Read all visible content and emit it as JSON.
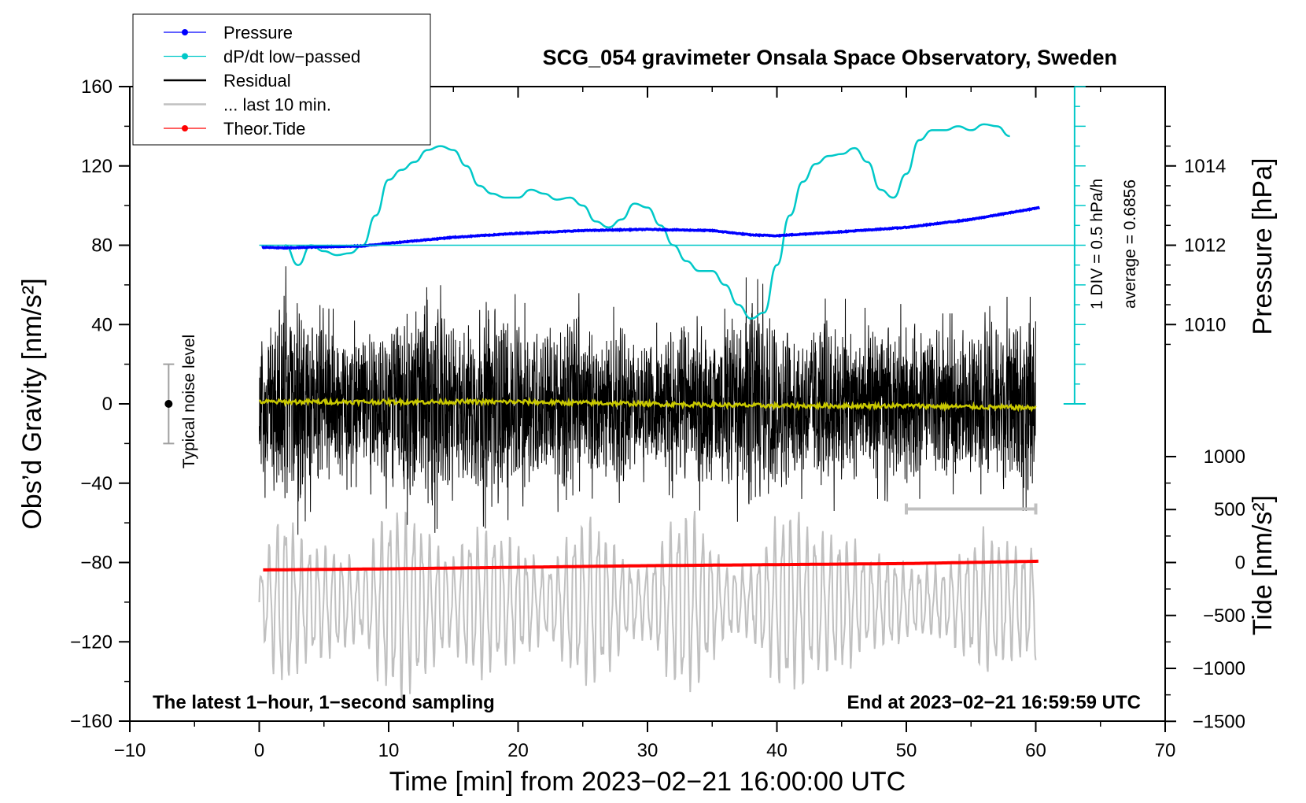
{
  "chart_data": {
    "type": "line",
    "title": "SCG_054 gravimeter Onsala Space Observatory, Sweden",
    "xlabel": "Time [min] from 2023−02−21 16:00:00 UTC",
    "ylabel_left": "Obs’d Gravity [nm/s²]",
    "ylabel_right_pressure": "Pressure [hPa]",
    "ylabel_right_tide": "Tide [nm/s²]",
    "xlim": [
      -10,
      70
    ],
    "ylim": [
      -160,
      160
    ],
    "x_ticks": [
      -10,
      0,
      10,
      20,
      30,
      40,
      50,
      60,
      70
    ],
    "x_tick_labels": [
      "−10",
      "0",
      "10",
      "20",
      "30",
      "40",
      "50",
      "60",
      "70"
    ],
    "y_ticks": [
      160,
      120,
      80,
      40,
      0,
      -40,
      -80,
      -120,
      -160
    ],
    "y_tick_labels": [
      "160",
      "120",
      "80",
      "40",
      "0",
      "−40",
      "−80",
      "−120",
      "−160"
    ],
    "pressure_ticks": [
      1014,
      1012,
      1010
    ],
    "pressure_tick_labels": [
      "1014",
      "1012",
      "1010"
    ],
    "pressure_scale": {
      "value_at_gravity_80": 1012,
      "hpa_per_40_gravity": 2
    },
    "tide_ticks": [
      1000,
      500,
      0,
      -500,
      -1000,
      -1500
    ],
    "tide_tick_labels": [
      "1000",
      "500",
      "0",
      "−500",
      "−1000",
      "−1500"
    ],
    "tide_scale": {
      "value_at_gravity_minus80": 0,
      "gravity_per_500": 26.7
    },
    "legend": [
      {
        "label": "Pressure",
        "color": "#0000ff",
        "marker": true
      },
      {
        "label": "dP/dt low−passed",
        "color": "#00c8c8",
        "marker": true
      },
      {
        "label": "Residual",
        "color": "#000000",
        "marker": false
      },
      {
        "label": "... last 10 min.",
        "color": "#c0c0c0",
        "marker": false
      },
      {
        "label": "Theor.Tide",
        "color": "#ff0000",
        "marker": true
      }
    ],
    "footer_left": "The latest 1−hour, 1−second sampling",
    "footer_right": "End at 2023−02−21 16:59:59 UTC",
    "noise_label": "Typical noise level",
    "noise_bar": {
      "x": -7,
      "center": 0,
      "half_range": 20
    },
    "dpdt_scale_label": "1 DIV = 0.5 hPa/h",
    "dpdt_average_label": "average = 0.6856",
    "dpdt_scale_axis": {
      "x": 63,
      "y_range": [
        0,
        160
      ],
      "baseline_y": 80
    },
    "last10_range_bar": {
      "x_range": [
        50,
        60
      ],
      "y": -53
    },
    "series": [
      {
        "name": "Pressure",
        "color": "#0000ff",
        "axis": "pressure",
        "x": [
          0.2,
          2,
          5,
          8,
          10,
          15,
          20,
          25,
          30,
          35,
          38,
          40,
          45,
          50,
          55,
          60.3
        ],
        "y": [
          1011.95,
          1011.93,
          1011.96,
          1011.98,
          1012.05,
          1012.2,
          1012.3,
          1012.37,
          1012.4,
          1012.37,
          1012.26,
          1012.24,
          1012.34,
          1012.45,
          1012.65,
          1012.95
        ]
      },
      {
        "name": "dP/dt low−passed",
        "color": "#00c8c8",
        "axis": "gravity_proxy",
        "x": [
          2,
          3,
          4,
          5,
          6,
          7,
          8,
          9,
          10,
          11,
          12,
          13,
          14,
          15,
          16,
          17,
          18,
          19,
          20,
          21,
          22,
          23,
          24,
          25,
          26,
          27,
          28,
          29,
          30,
          31,
          32,
          33,
          34,
          35,
          36,
          37,
          38,
          39,
          40,
          41,
          42,
          43,
          44,
          45,
          46,
          47,
          48,
          49,
          50,
          51,
          52,
          53,
          54,
          55,
          56,
          57,
          58
        ],
        "y": [
          80,
          70,
          80,
          77,
          75,
          76,
          80,
          95,
          113,
          118,
          122,
          128,
          130,
          128,
          120,
          110,
          106,
          104,
          104,
          108,
          106,
          103,
          104,
          100,
          92,
          89,
          93,
          101,
          99,
          90,
          80,
          72,
          67,
          67,
          60,
          50,
          43,
          46,
          70,
          95,
          112,
          121,
          125,
          126,
          129,
          122,
          108,
          104,
          116,
          133,
          138,
          138,
          140,
          138,
          141,
          140,
          135
        ]
      },
      {
        "name": "Residual",
        "color": "#000000",
        "axis": "gravity",
        "x_range": [
          0,
          60
        ],
        "amplitude_envelope": [
          35,
          45,
          58,
          55,
          45,
          40,
          40,
          35,
          35,
          40,
          45,
          50,
          52,
          60,
          50,
          40,
          40,
          50,
          55,
          50,
          45,
          40,
          40,
          45,
          50,
          45,
          38,
          40,
          42,
          35,
          32,
          35,
          40,
          45,
          45,
          40,
          40,
          50,
          55,
          50,
          45,
          40,
          40,
          42,
          45,
          45,
          42,
          40,
          40,
          42,
          42,
          40,
          38,
          38,
          38,
          38,
          38,
          45,
          45,
          45,
          45
        ],
        "mean_trace": {
          "color": "#c8c800",
          "x": [
            0,
            10,
            20,
            30,
            40,
            50,
            60
          ],
          "y": [
            1,
            1,
            1,
            0,
            -1,
            -1,
            -2
          ]
        }
      },
      {
        "name": "... last 10 min.",
        "color": "#c0c0c0",
        "axis": "gravity",
        "x_range": [
          0,
          60
        ],
        "center": -100,
        "amplitude_envelope": [
          12,
          30,
          40,
          28,
          25,
          25,
          22,
          20,
          15,
          30,
          40,
          40,
          38,
          30,
          25,
          18,
          30,
          32,
          30,
          28,
          25,
          20,
          15,
          20,
          30,
          35,
          35,
          30,
          20,
          15,
          15,
          25,
          35,
          40,
          35,
          25,
          15,
          15,
          15,
          25,
          35,
          40,
          35,
          30,
          30,
          30,
          25,
          20,
          20,
          20,
          15,
          15,
          15,
          15,
          20,
          25,
          30,
          30,
          25,
          25,
          25
        ]
      },
      {
        "name": "Theor.Tide",
        "color": "#ff0000",
        "axis": "tide",
        "x": [
          0.3,
          10,
          20,
          30,
          40,
          50,
          60.3
        ],
        "y": [
          -70,
          -60,
          -45,
          -30,
          -20,
          -10,
          12
        ]
      }
    ]
  }
}
